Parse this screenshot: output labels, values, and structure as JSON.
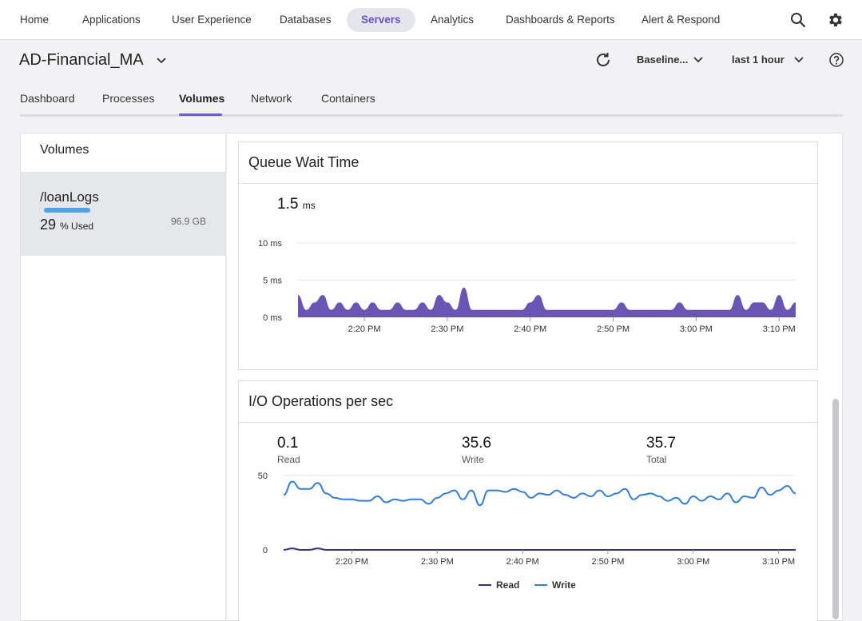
{
  "nav": {
    "items": [
      "Home",
      "Applications",
      "User Experience",
      "Databases",
      "Servers",
      "Analytics",
      "Dashboards & Reports",
      "Alert & Respond"
    ],
    "active": "Servers",
    "search_icon": "search-icon",
    "settings_icon": "gear-icon"
  },
  "header": {
    "title": "AD-Financial_MA",
    "baseline": "Baseline...",
    "timerange": "last 1 hour"
  },
  "tabs": [
    "Dashboard",
    "Processes",
    "Volumes",
    "Network",
    "Containers"
  ],
  "active_tab": "Volumes",
  "colors": {
    "accent": "#7158d4",
    "queue_fill": "#6a55b5",
    "read": "#3a2f91",
    "write": "#2f7ee0",
    "bar": "#4aa3f0"
  },
  "sidebar": {
    "title": "Volumes",
    "volume": {
      "name": "/loanLogs",
      "used": "29",
      "used_suffix": "% Used",
      "size": "96.9 GB",
      "used_fraction": 0.29
    }
  },
  "queue": {
    "title": "Queue Wait Time",
    "value": "1.5",
    "unit": "ms"
  },
  "io": {
    "title": "I/O Operations per sec",
    "read_value": "0.1",
    "read_label": "Read",
    "write_value": "35.6",
    "write_label": "Write",
    "total_value": "35.7",
    "total_label": "Total"
  },
  "chart_data": [
    {
      "type": "area",
      "yticks": [
        "10 ms",
        "5 ms",
        "0 ms"
      ],
      "ylim": [
        0,
        10
      ],
      "xticks": [
        "2:20 PM",
        "2:30 PM",
        "2:40 PM",
        "2:50 PM",
        "3:00 PM",
        "3:10 PM"
      ],
      "x_minutes": [
        0,
        1,
        2,
        3,
        4,
        5,
        6,
        7,
        8,
        9,
        10,
        11,
        12,
        13,
        14,
        15,
        16,
        17,
        18,
        19,
        20,
        21,
        22,
        23,
        24,
        25,
        26,
        27,
        28,
        29,
        30,
        31,
        32,
        33,
        34,
        35,
        36,
        37,
        38,
        39,
        40,
        41,
        42,
        43,
        44,
        45,
        46,
        47,
        48,
        49,
        50,
        51,
        52,
        53,
        54,
        55,
        56,
        57,
        58,
        59,
        60
      ],
      "series": [
        {
          "values": [
            3,
            1,
            2,
            3,
            1,
            2,
            1,
            2,
            1,
            2,
            1,
            1,
            2,
            1,
            1,
            2,
            1,
            3,
            2,
            1,
            4,
            1,
            1,
            1,
            1,
            1,
            1,
            1,
            2,
            3,
            1,
            1,
            1,
            1,
            1,
            1,
            1,
            1,
            1,
            2,
            1,
            1,
            1,
            1,
            1,
            1,
            2,
            1,
            1,
            1,
            1,
            1,
            1,
            3,
            1,
            2,
            2,
            1,
            3,
            1,
            2
          ]
        }
      ]
    },
    {
      "type": "line",
      "yticks": [
        "50",
        "0"
      ],
      "ylim": [
        0,
        50
      ],
      "xticks": [
        "2:20 PM",
        "2:30 PM",
        "2:40 PM",
        "2:50 PM",
        "3:00 PM",
        "3:10 PM"
      ],
      "x_minutes": [
        0,
        1,
        2,
        3,
        4,
        5,
        6,
        7,
        8,
        9,
        10,
        11,
        12,
        13,
        14,
        15,
        16,
        17,
        18,
        19,
        20,
        21,
        22,
        23,
        24,
        25,
        26,
        27,
        28,
        29,
        30,
        31,
        32,
        33,
        34,
        35,
        36,
        37,
        38,
        39,
        40,
        41,
        42,
        43,
        44,
        45,
        46,
        47,
        48,
        49,
        50,
        51,
        52,
        53,
        54,
        55,
        56,
        57,
        58,
        59,
        60
      ],
      "series": [
        {
          "name": "Read",
          "values": [
            0,
            1,
            0,
            0,
            1,
            0,
            0,
            0,
            0,
            0,
            0,
            0,
            0,
            0,
            0,
            0,
            0,
            0,
            0,
            0,
            0,
            0,
            0,
            0,
            0,
            0,
            0,
            0,
            0,
            0,
            0,
            0,
            0,
            0,
            0,
            0,
            0,
            0,
            0,
            0,
            0,
            0,
            0,
            0,
            0,
            0,
            0,
            0,
            0,
            0,
            0,
            0,
            0,
            0,
            0,
            0,
            0,
            0,
            0,
            0,
            0
          ]
        },
        {
          "name": "Write",
          "values": [
            37,
            46,
            41,
            41,
            45,
            38,
            35,
            34,
            34,
            33,
            33,
            36,
            32,
            34,
            33,
            34,
            34,
            31,
            35,
            38,
            40,
            34,
            40,
            30,
            40,
            40,
            39,
            41,
            39,
            35,
            38,
            37,
            40,
            37,
            35,
            38,
            36,
            40,
            36,
            38,
            41,
            34,
            37,
            38,
            36,
            33,
            35,
            31,
            36,
            33,
            36,
            34,
            38,
            32,
            36,
            35,
            42,
            37,
            40,
            43,
            38
          ]
        }
      ],
      "legend": [
        "Read",
        "Write"
      ]
    }
  ]
}
